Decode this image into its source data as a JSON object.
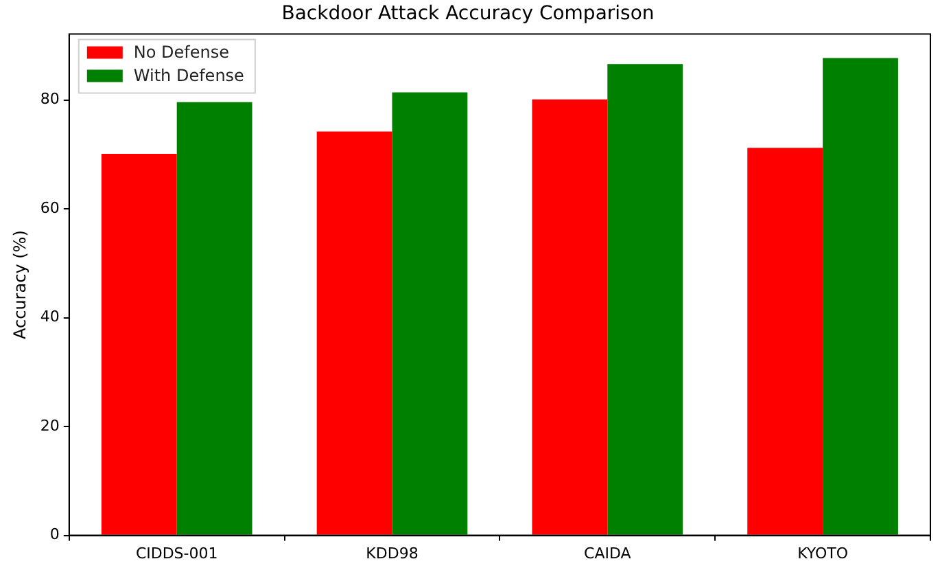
{
  "chart_data": {
    "type": "bar",
    "title": "Backdoor Attack Accuracy Comparison",
    "ylabel": "Accuracy (%)",
    "categories": [
      "CIDDS-001",
      "KDD98",
      "CAIDA",
      "KYOTO"
    ],
    "series": [
      {
        "name": "No Defense",
        "color": "#ff0000",
        "values": [
          70.1,
          74.2,
          80.1,
          71.2
        ]
      },
      {
        "name": "With Defense",
        "color": "#008000",
        "values": [
          79.6,
          81.4,
          86.6,
          87.7
        ]
      }
    ],
    "ylim": [
      0,
      92.1
    ],
    "yticks": [
      0,
      20,
      40,
      60,
      80
    ],
    "grid": false,
    "legend": "top left"
  }
}
